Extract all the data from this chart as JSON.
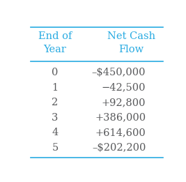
{
  "col1_header": "End of\nYear",
  "col2_header": "Net Cash\nFlow",
  "rows": [
    [
      "0",
      "–$450,000"
    ],
    [
      "1",
      "−42,500"
    ],
    [
      "2",
      "+92,800"
    ],
    [
      "3",
      "+386,000"
    ],
    [
      "4",
      "+614,600"
    ],
    [
      "5",
      "–$202,200"
    ]
  ],
  "header_color": "#29ABE2",
  "data_color": "#58595B",
  "bg_color": "#FFFFFF",
  "line_color": "#29ABE2",
  "fig_width": 2.67,
  "fig_height": 2.61,
  "dpi": 100
}
